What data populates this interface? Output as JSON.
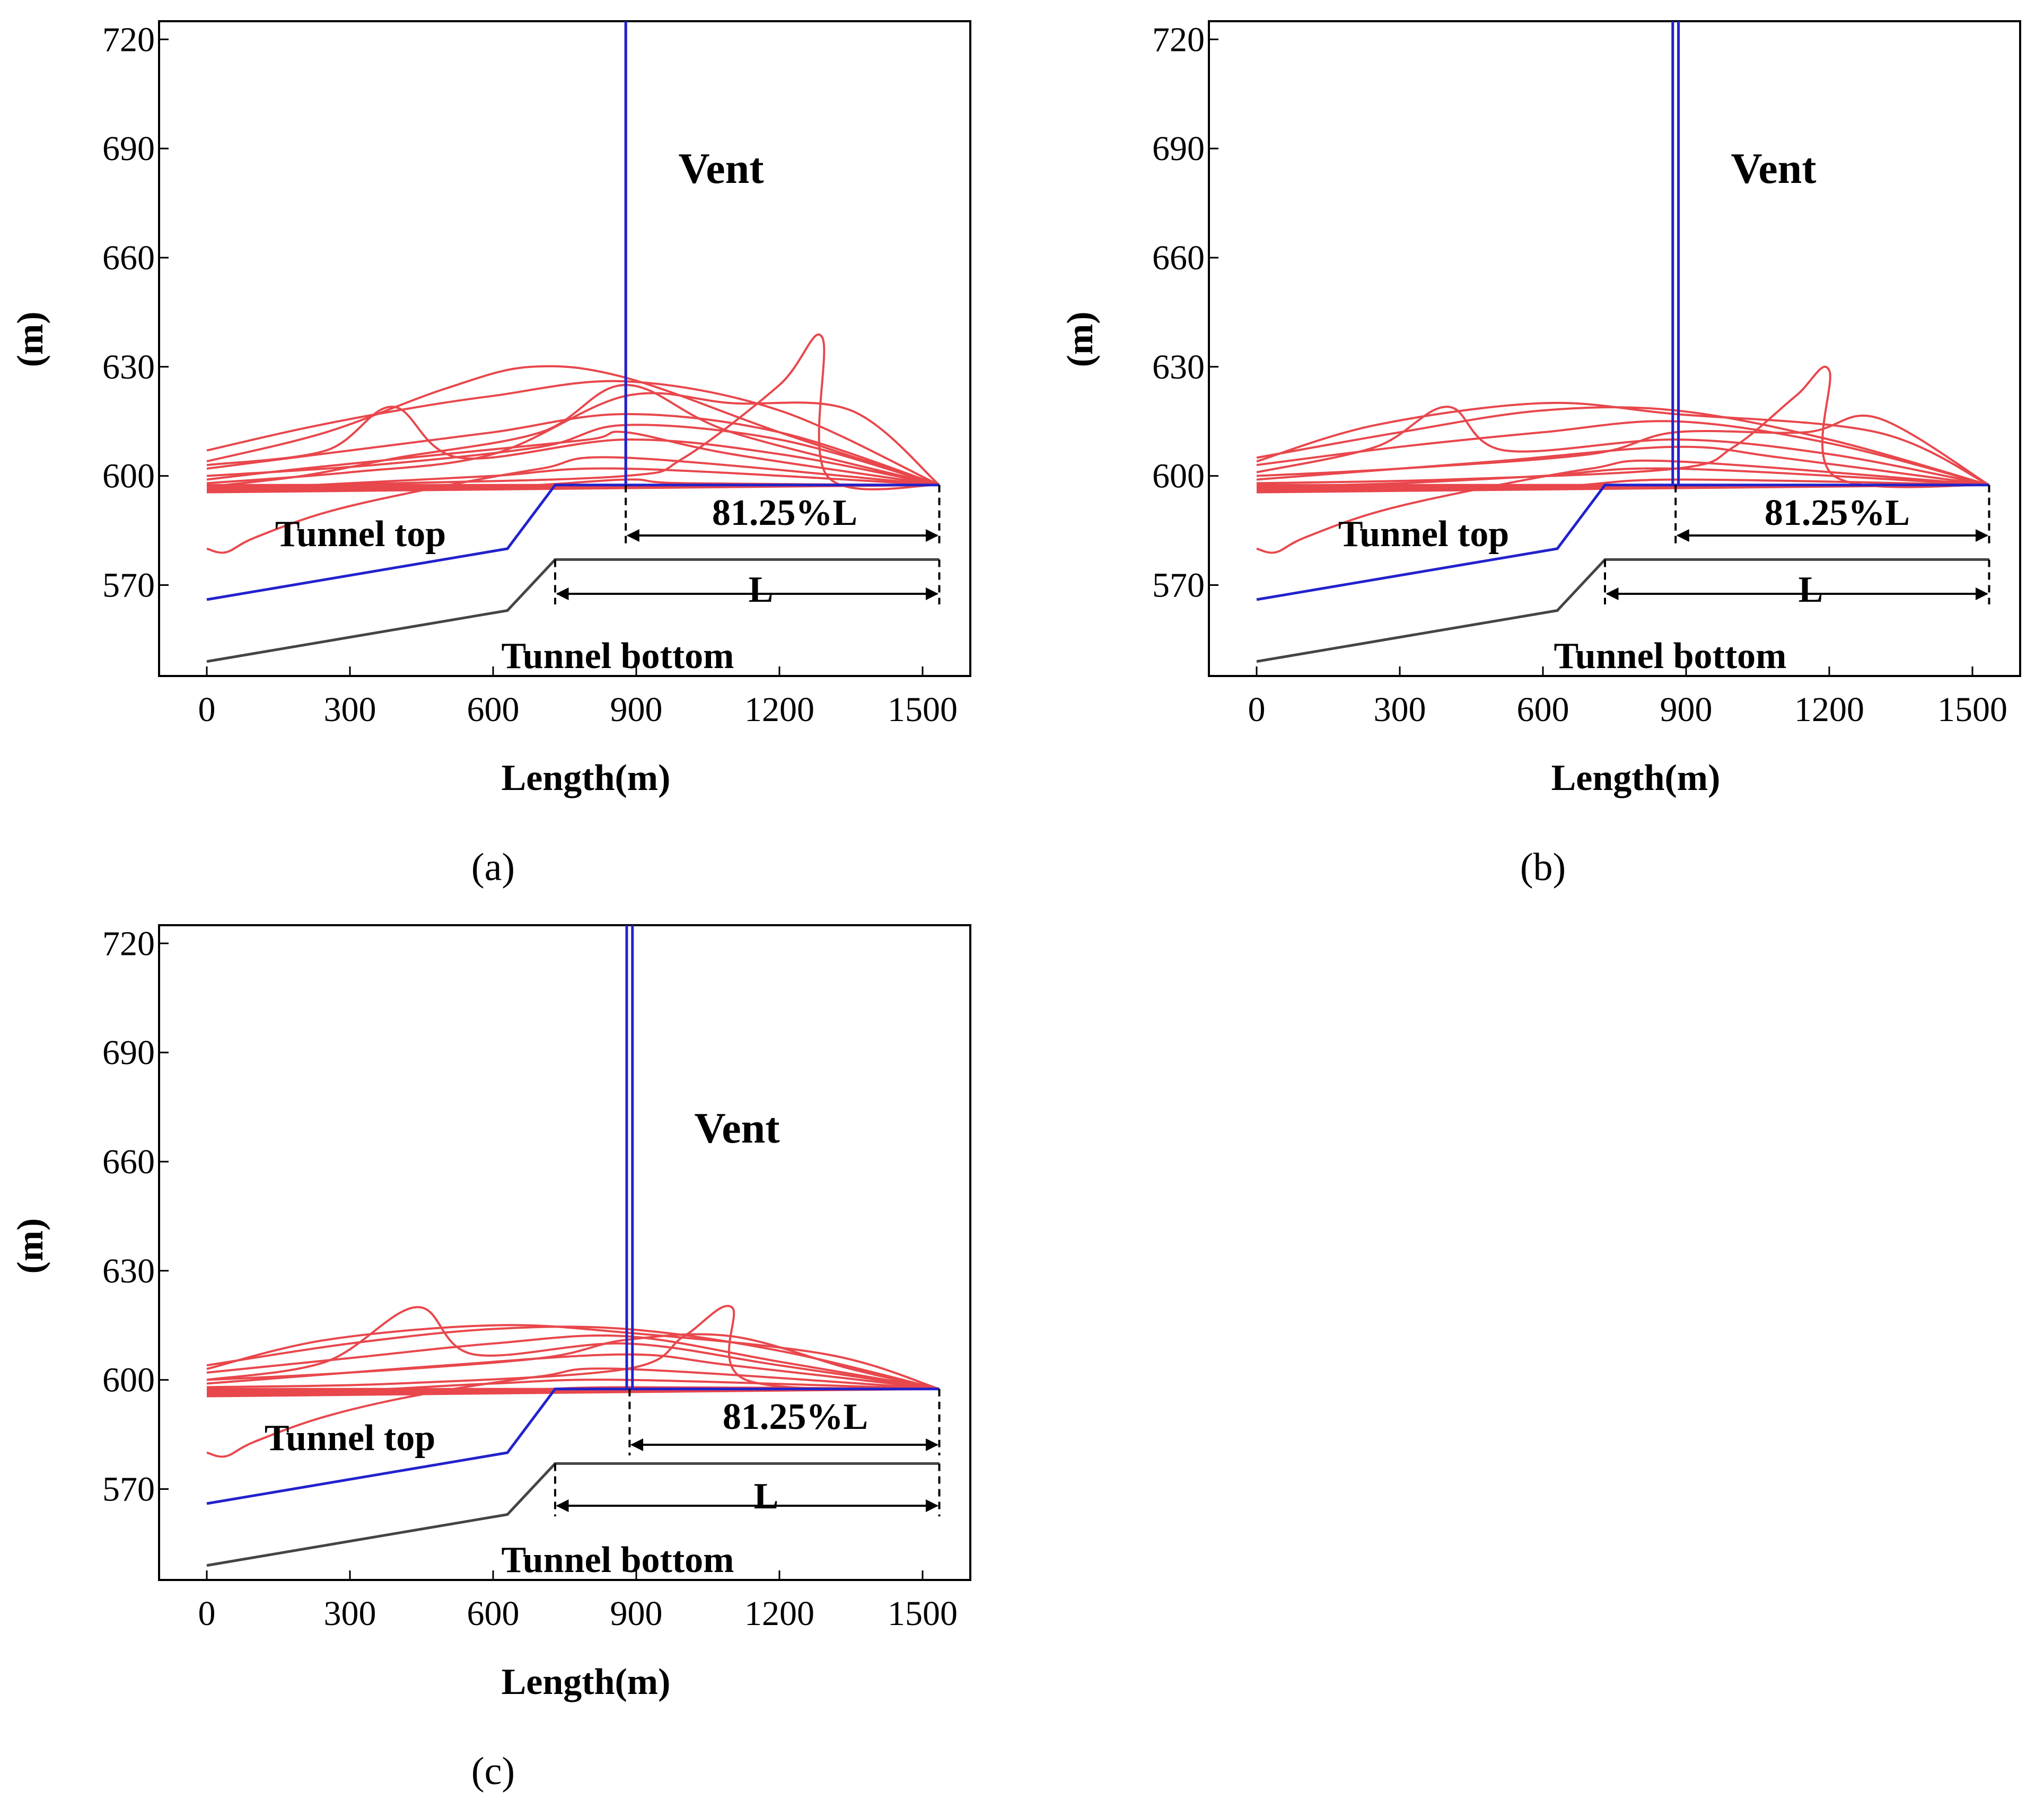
{
  "colors": {
    "pathlines": "#e8474c",
    "tunnel_top": "#2222cc",
    "tunnel_bottom": "#444444",
    "vent": "#2222cc",
    "frame": "#000000"
  },
  "chart_data": [
    {
      "panel": "(a)",
      "type": "line",
      "xlabel": "Length(m)",
      "ylabel": "(m)",
      "xlim": [
        -100,
        1600
      ],
      "ylim": [
        545,
        725
      ],
      "xticks": [
        "0",
        "300",
        "600",
        "900",
        "1200",
        "1500"
      ],
      "yticks": [
        "570",
        "600",
        "630",
        "660",
        "690",
        "720"
      ],
      "annotations": {
        "vent": "Vent",
        "tunnel_top": "Tunnel top",
        "tunnel_bottom": "Tunnel bottom",
        "vent_dimension": "81.25%L",
        "length_dimension": "L"
      },
      "vent_x": [
        878,
        878
      ],
      "dimension_vent_x": [
        878,
        1535
      ],
      "dimension_L_x": [
        730,
        1535
      ],
      "series": [
        {
          "name": "Tunnel top",
          "x": [
            0,
            630,
            730,
            1535
          ],
          "y": [
            566,
            580,
            597.5,
            597.5
          ]
        },
        {
          "name": "Tunnel bottom",
          "x": [
            0,
            630,
            730,
            1535
          ],
          "y": [
            549,
            563,
            577,
            577
          ]
        }
      ],
      "pathlines": [
        {
          "x": [
            0,
            200,
            400,
            600,
            878,
            1200,
            1535
          ],
          "y": [
            607,
            613,
            618,
            622,
            626,
            618,
            597.5
          ]
        },
        {
          "x": [
            0,
            250,
            500,
            680,
            878,
            1200,
            1535
          ],
          "y": [
            604,
            612,
            624,
            630,
            627,
            612,
            597.5
          ]
        },
        {
          "x": [
            0,
            300,
            600,
            878,
            1200,
            1535
          ],
          "y": [
            602,
            607,
            612,
            617,
            612,
            597.5
          ]
        },
        {
          "x": [
            0,
            350,
            700,
            878,
            1200,
            1535
          ],
          "y": [
            600,
            603,
            608,
            614,
            610,
            597.5
          ]
        },
        {
          "x": [
            0,
            300,
            600,
            878,
            1100,
            1350,
            1535
          ],
          "y": [
            598,
            601,
            606,
            622,
            620,
            618,
            597.5
          ]
        },
        {
          "x": [
            0,
            250,
            390,
            530,
            878,
            1200,
            1535
          ],
          "y": [
            603,
            607,
            619,
            605,
            610,
            606,
            597.5
          ]
        },
        {
          "x": [
            0,
            200,
            400,
            700,
            878,
            1100,
            1535
          ],
          "y": [
            597,
            600,
            605,
            612,
            625,
            612,
            597.5
          ]
        },
        {
          "x": [
            0,
            400,
            878,
            1000,
            1200,
            1290,
            1300,
            1535
          ],
          "y": [
            597,
            598,
            600,
            605,
            625,
            638,
            600,
            597.5
          ]
        },
        {
          "x": [
            0,
            40,
            100,
            250,
            450,
            700,
            878,
            1535
          ],
          "y": [
            580,
            579,
            583,
            590,
            596,
            602,
            605,
            597.5
          ]
        },
        {
          "x": [
            0,
            200,
            500,
            800,
            878,
            1100,
            1535
          ],
          "y": [
            599,
            602,
            606,
            610,
            612,
            606,
            597.5
          ]
        },
        {
          "x": [
            0,
            300,
            600,
            878,
            1535
          ],
          "y": [
            596,
            598,
            600,
            602,
            597.5
          ]
        },
        {
          "x": [
            0,
            600,
            878,
            1000,
            1535
          ],
          "y": [
            596,
            597,
            599,
            598,
            597.5
          ]
        }
      ]
    },
    {
      "panel": "(b)",
      "type": "line",
      "xlabel": "Length(m)",
      "ylabel": "(m)",
      "xlim": [
        -100,
        1600
      ],
      "ylim": [
        545,
        725
      ],
      "xticks": [
        "0",
        "300",
        "600",
        "900",
        "1200",
        "1500"
      ],
      "yticks": [
        "570",
        "600",
        "630",
        "660",
        "690",
        "720"
      ],
      "annotations": {
        "vent": "Vent",
        "tunnel_top": "Tunnel top",
        "tunnel_bottom": "Tunnel bottom",
        "vent_dimension": "81.25%L",
        "length_dimension": "L"
      },
      "vent_x": [
        872,
        884
      ],
      "dimension_vent_x": [
        878,
        1535
      ],
      "dimension_L_x": [
        730,
        1535
      ],
      "series": [
        {
          "name": "Tunnel top",
          "x": [
            0,
            630,
            730,
            1535
          ],
          "y": [
            566,
            580,
            597.5,
            597.5
          ]
        },
        {
          "name": "Tunnel bottom",
          "x": [
            0,
            630,
            730,
            1535
          ],
          "y": [
            549,
            563,
            577,
            577
          ]
        }
      ],
      "pathlines": [
        {
          "x": [
            0,
            300,
            600,
            878,
            1200,
            1535
          ],
          "y": [
            605,
            612,
            618,
            618,
            610,
            597.5
          ]
        },
        {
          "x": [
            0,
            250,
            600,
            878,
            1300,
            1535
          ],
          "y": [
            604,
            614,
            620,
            617,
            612,
            597.5
          ]
        },
        {
          "x": [
            0,
            300,
            600,
            878,
            1200,
            1535
          ],
          "y": [
            603,
            608,
            612,
            615,
            609,
            597.5
          ]
        },
        {
          "x": [
            0,
            250,
            400,
            520,
            878,
            1200,
            1535
          ],
          "y": [
            601,
            608,
            619,
            607,
            610,
            606,
            597.5
          ]
        },
        {
          "x": [
            0,
            400,
            878,
            1000,
            1130,
            1200,
            1210,
            1535
          ],
          "y": [
            598,
            599,
            602,
            608,
            622,
            629,
            600,
            597.5
          ]
        },
        {
          "x": [
            0,
            300,
            700,
            878,
            1150,
            1300,
            1535
          ],
          "y": [
            600,
            602,
            606,
            612,
            612,
            616,
            597.5
          ]
        },
        {
          "x": [
            0,
            40,
            100,
            250,
            450,
            700,
            878,
            1535
          ],
          "y": [
            580,
            579,
            583,
            590,
            596,
            602,
            604,
            597.5
          ]
        },
        {
          "x": [
            0,
            200,
            500,
            878,
            1100,
            1535
          ],
          "y": [
            599,
            601,
            604,
            608,
            605,
            597.5
          ]
        },
        {
          "x": [
            0,
            300,
            600,
            878,
            1535
          ],
          "y": [
            597,
            598,
            600,
            602,
            597.5
          ]
        },
        {
          "x": [
            0,
            600,
            878,
            1535
          ],
          "y": [
            596,
            597,
            599,
            597.5
          ]
        }
      ]
    },
    {
      "panel": "(c)",
      "type": "line",
      "xlabel": "Length(m)",
      "ylabel": "(m)",
      "xlim": [
        -100,
        1600
      ],
      "ylim": [
        545,
        725
      ],
      "xticks": [
        "0",
        "300",
        "600",
        "900",
        "1200",
        "1500"
      ],
      "yticks": [
        "570",
        "600",
        "630",
        "660",
        "690",
        "720"
      ],
      "annotations": {
        "vent": "Vent",
        "tunnel_top": "Tunnel top",
        "tunnel_bottom": "Tunnel bottom",
        "vent_dimension": "81.25%L",
        "length_dimension": "L"
      },
      "vent_x": [
        880,
        892
      ],
      "dimension_vent_x": [
        886,
        1535
      ],
      "dimension_L_x": [
        730,
        1535
      ],
      "series": [
        {
          "name": "Tunnel top",
          "x": [
            0,
            630,
            730,
            1535
          ],
          "y": [
            566,
            580,
            597.5,
            597.5
          ]
        },
        {
          "name": "Tunnel bottom",
          "x": [
            0,
            630,
            730,
            1535
          ],
          "y": [
            549,
            563,
            577,
            577
          ]
        }
      ],
      "pathlines": [
        {
          "x": [
            0,
            300,
            600,
            878,
            1200,
            1535
          ],
          "y": [
            604,
            610,
            614,
            614,
            608,
            597.5
          ]
        },
        {
          "x": [
            0,
            250,
            600,
            878,
            1300,
            1535
          ],
          "y": [
            603,
            611,
            615,
            613,
            607,
            597.5
          ]
        },
        {
          "x": [
            0,
            300,
            600,
            878,
            1200,
            1535
          ],
          "y": [
            602,
            606,
            610,
            612,
            605,
            597.5
          ]
        },
        {
          "x": [
            0,
            250,
            440,
            560,
            878,
            1200,
            1535
          ],
          "y": [
            600,
            605,
            620,
            607,
            610,
            604,
            597.5
          ]
        },
        {
          "x": [
            0,
            400,
            878,
            1000,
            1100,
            1130,
            1535
          ],
          "y": [
            598,
            599,
            603,
            612,
            620,
            600,
            597.5
          ]
        },
        {
          "x": [
            0,
            300,
            700,
            878,
            1100,
            1350,
            1535
          ],
          "y": [
            600,
            602,
            606,
            611,
            612,
            603,
            597.5
          ]
        },
        {
          "x": [
            0,
            40,
            100,
            250,
            450,
            700,
            878,
            1535
          ],
          "y": [
            580,
            579,
            583,
            590,
            596,
            601,
            603,
            597.5
          ]
        },
        {
          "x": [
            0,
            200,
            500,
            878,
            1100,
            1535
          ],
          "y": [
            599,
            601,
            604,
            607,
            604,
            597.5
          ]
        },
        {
          "x": [
            0,
            300,
            600,
            878,
            1535
          ],
          "y": [
            596,
            597,
            599,
            600,
            597.5
          ]
        },
        {
          "x": [
            0,
            600,
            878,
            1535
          ],
          "y": [
            596,
            597,
            598,
            597.5
          ]
        }
      ]
    }
  ]
}
